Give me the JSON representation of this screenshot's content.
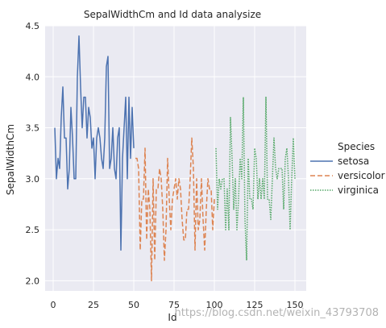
{
  "chart_data": {
    "type": "line",
    "title": "SepalWidthCm and Id data analysize",
    "xlabel": "Id",
    "ylabel": "SepalWidthCm",
    "xlim": [
      -5,
      157
    ],
    "ylim": [
      1.9,
      4.5
    ],
    "xticks": [
      0,
      25,
      50,
      75,
      100,
      125,
      150
    ],
    "yticks": [
      2.0,
      2.5,
      3.0,
      3.5,
      4.0,
      4.5
    ],
    "ytick_labels": [
      "2.0",
      "2.5",
      "3.0",
      "3.5",
      "4.0",
      "4.5"
    ],
    "grid": true,
    "legend": {
      "title": "Species",
      "placement": "outside-right",
      "entries": [
        "setosa",
        "versicolor",
        "virginica"
      ]
    },
    "series": [
      {
        "name": "setosa",
        "color": "#4c72b0",
        "style": "solid",
        "x_start": 1,
        "values": [
          3.5,
          3.0,
          3.2,
          3.1,
          3.6,
          3.9,
          3.4,
          3.4,
          2.9,
          3.1,
          3.7,
          3.4,
          3.0,
          3.0,
          4.0,
          4.4,
          3.9,
          3.5,
          3.8,
          3.8,
          3.4,
          3.7,
          3.6,
          3.3,
          3.4,
          3.0,
          3.4,
          3.5,
          3.4,
          3.2,
          3.1,
          3.4,
          4.1,
          4.2,
          3.1,
          3.2,
          3.5,
          3.1,
          3.0,
          3.4,
          3.5,
          2.3,
          3.2,
          3.5,
          3.8,
          3.0,
          3.8,
          3.2,
          3.7,
          3.3
        ]
      },
      {
        "name": "versicolor",
        "color": "#dd8452",
        "style": "dashed",
        "x_start": 51,
        "values": [
          3.2,
          3.2,
          3.1,
          2.3,
          2.8,
          2.8,
          3.3,
          2.4,
          2.9,
          2.7,
          2.0,
          3.0,
          2.2,
          2.9,
          2.9,
          3.1,
          3.0,
          2.7,
          2.2,
          2.5,
          3.2,
          2.8,
          2.5,
          2.8,
          2.9,
          3.0,
          2.8,
          3.0,
          2.9,
          2.6,
          2.4,
          2.4,
          2.7,
          2.7,
          3.0,
          3.4,
          3.1,
          2.3,
          3.0,
          2.5,
          2.6,
          3.0,
          2.6,
          2.3,
          2.7,
          3.0,
          2.9,
          2.9,
          2.5,
          2.8
        ]
      },
      {
        "name": "virginica",
        "color": "#55a868",
        "style": "dotted",
        "x_start": 101,
        "values": [
          3.3,
          2.7,
          3.0,
          2.9,
          3.0,
          3.0,
          2.5,
          2.9,
          2.5,
          3.6,
          3.2,
          2.7,
          3.0,
          2.5,
          2.8,
          3.2,
          3.0,
          3.8,
          2.6,
          2.2,
          3.2,
          2.8,
          2.8,
          2.7,
          3.3,
          3.2,
          2.8,
          3.0,
          2.8,
          3.0,
          2.8,
          3.8,
          2.8,
          2.8,
          2.6,
          3.0,
          3.4,
          3.1,
          3.0,
          3.1,
          3.1,
          3.1,
          2.7,
          3.2,
          3.3,
          3.0,
          2.5,
          3.0,
          3.4,
          3.0
        ]
      }
    ]
  },
  "watermark": "https://blog.csdn.net/weixin_43793708"
}
